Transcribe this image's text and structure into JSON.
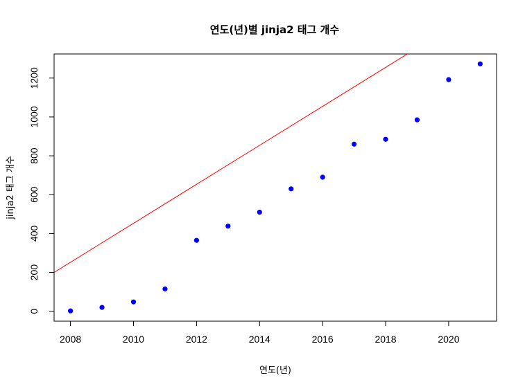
{
  "chart_data": {
    "type": "scatter",
    "title": "연도(년)별 jinja2 태그 개수",
    "xlabel": "연도(년)",
    "ylabel": "jinja2 태그 개수",
    "x": [
      2008,
      2009,
      2010,
      2011,
      2012,
      2013,
      2014,
      2015,
      2016,
      2017,
      2018,
      2019,
      2020,
      2021
    ],
    "y": [
      2,
      20,
      48,
      115,
      365,
      438,
      510,
      630,
      690,
      860,
      885,
      985,
      1192,
      1273
    ],
    "xlim": [
      2007.48,
      2021.52
    ],
    "ylim": [
      -50.9,
      1323.9
    ],
    "xticks": [
      2008,
      2010,
      2012,
      2014,
      2016,
      2018,
      2020
    ],
    "yticks": [
      0,
      200,
      400,
      600,
      800,
      1000,
      1200
    ],
    "point_color": "#0000ff",
    "regression_line": {
      "color": "#ff0000",
      "intercept": -201110.0,
      "slope": 100.28
    }
  }
}
